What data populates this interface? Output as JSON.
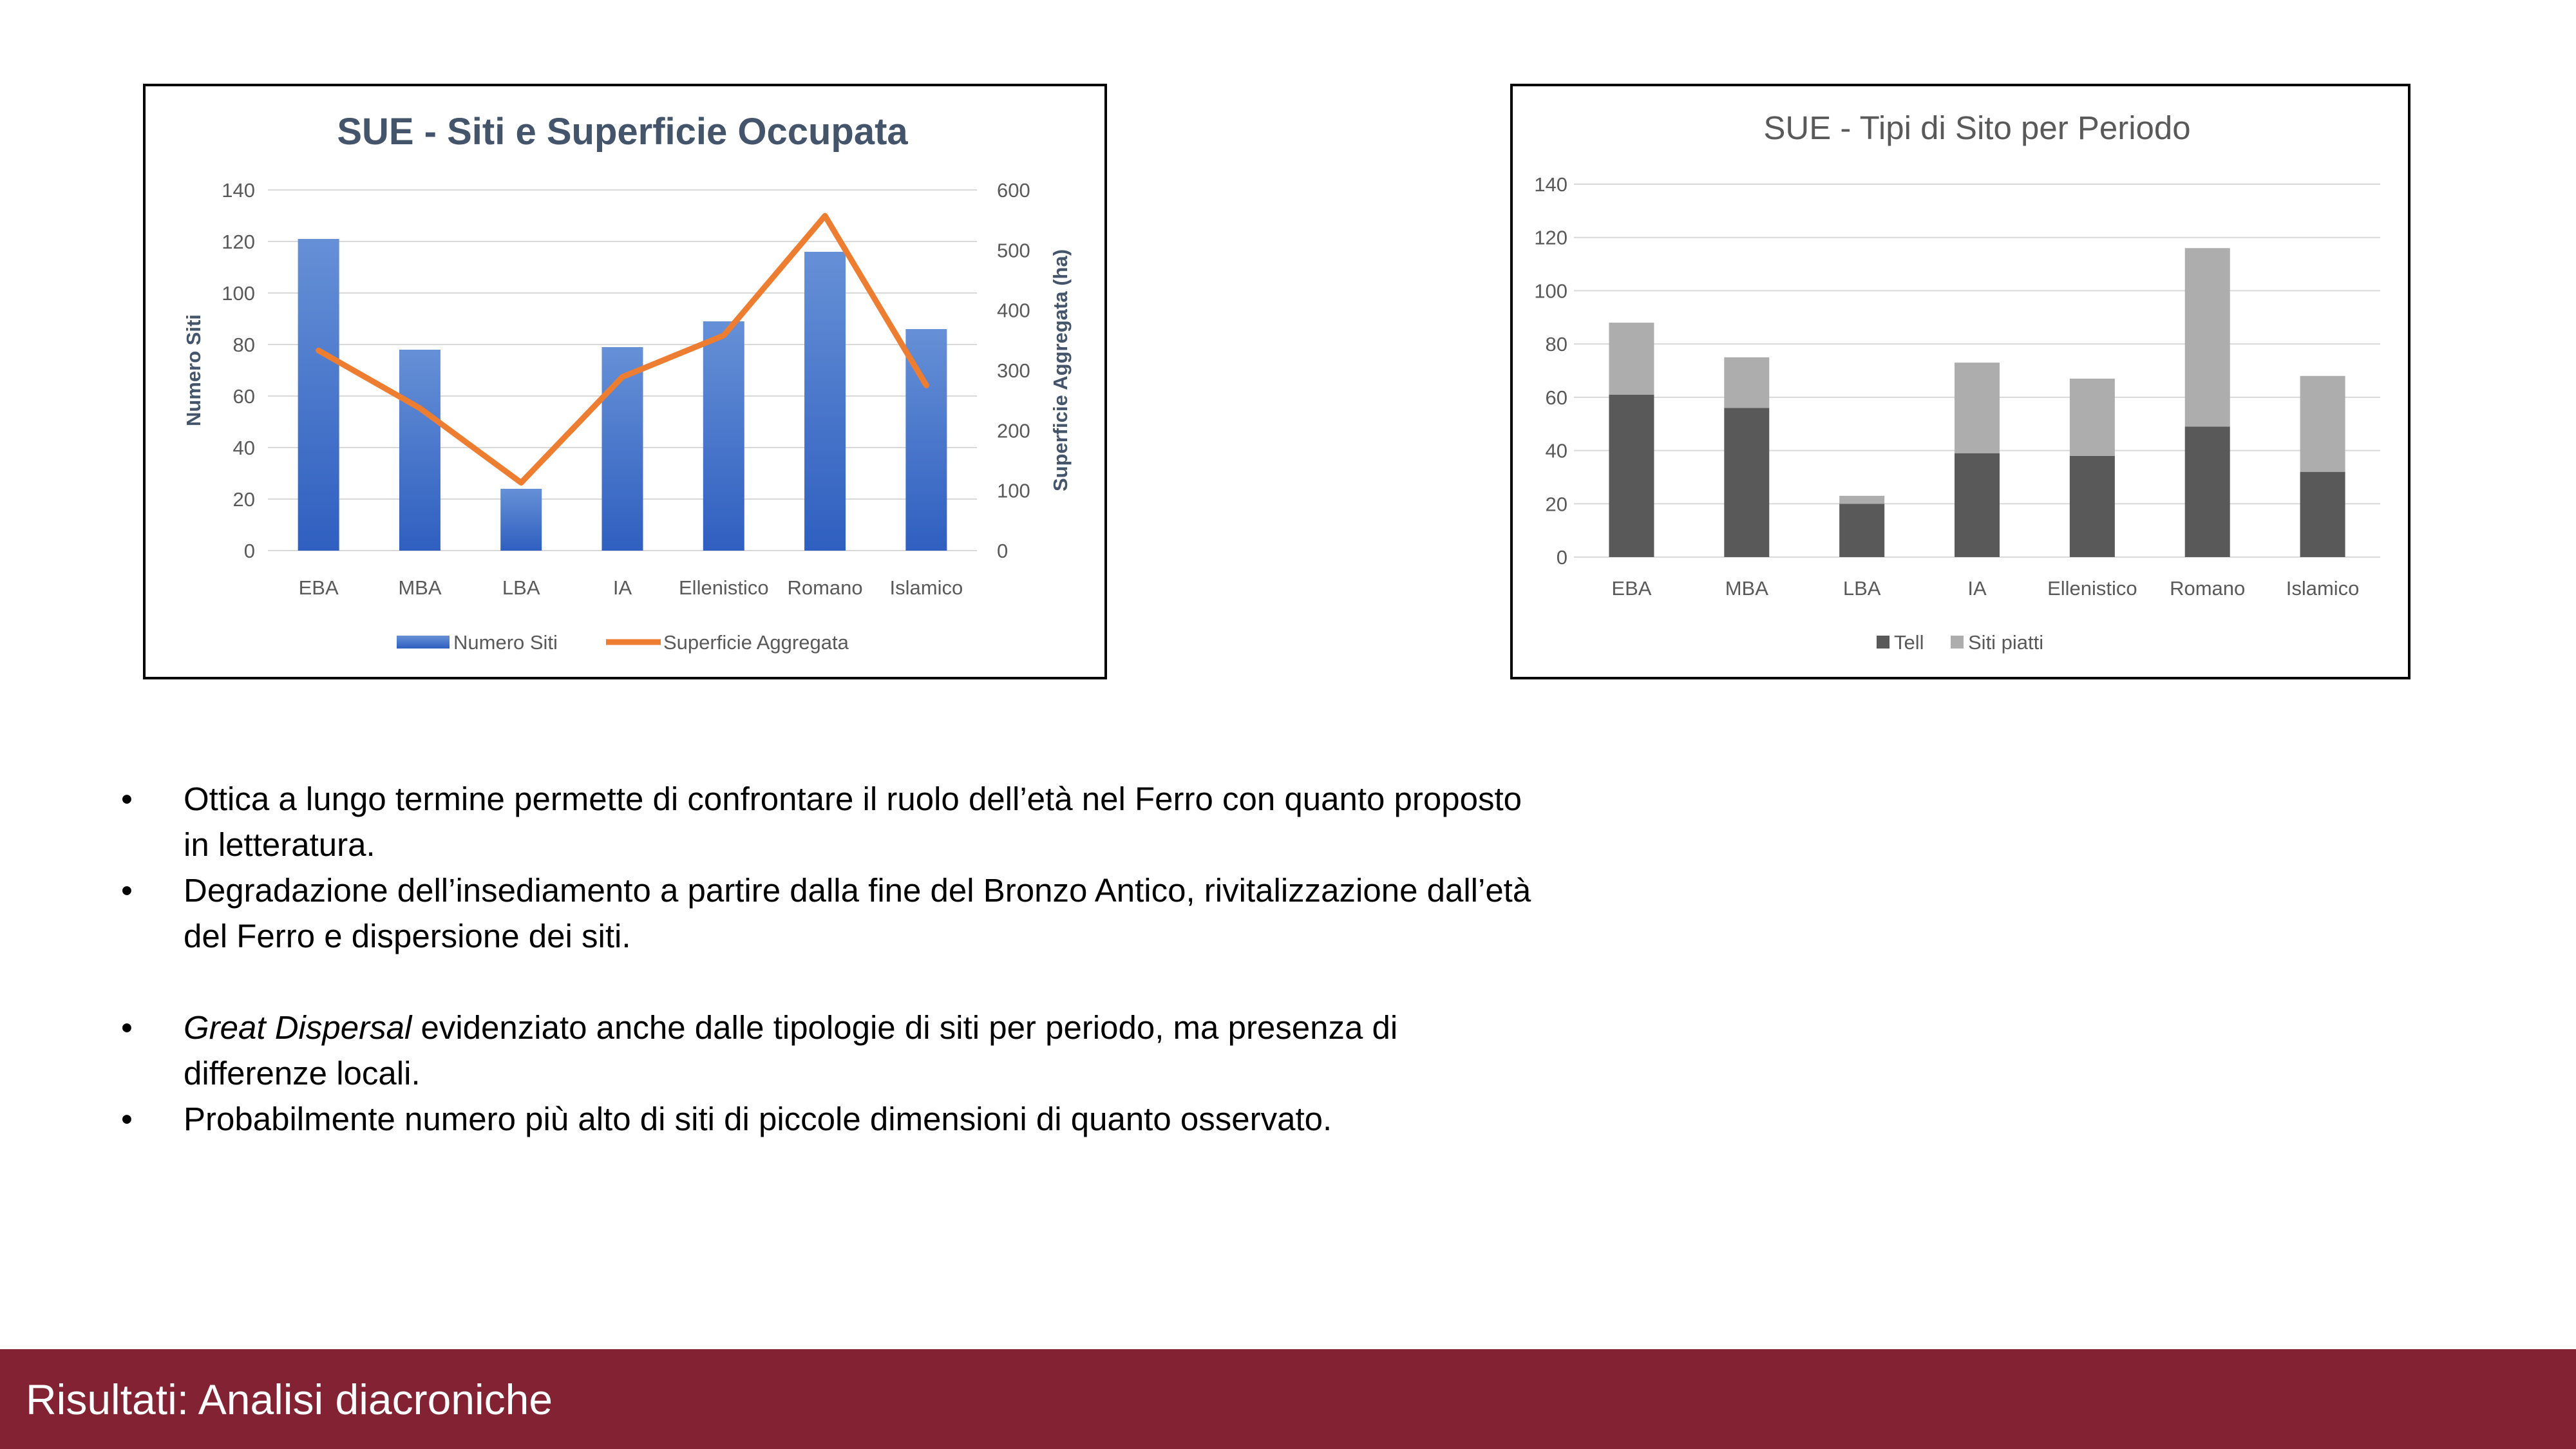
{
  "chart_data": [
    {
      "type": "bar",
      "title": "SUE - Siti e Superficie Occupata",
      "categories": [
        "EBA",
        "MBA",
        "LBA",
        "IA",
        "Ellenistico",
        "Romano",
        "Islamico"
      ],
      "series": [
        {
          "name": "Numero Siti",
          "type": "bar",
          "axis": "left",
          "values": [
            121,
            78,
            24,
            79,
            89,
            116,
            86
          ],
          "color": "#4472C4"
        },
        {
          "name": "Superficie Aggregata",
          "type": "line",
          "axis": "right",
          "values": [
            333,
            237,
            113,
            289,
            358,
            557,
            275
          ],
          "color": "#ED7D31"
        }
      ],
      "ylabel": "Numero Siti",
      "y2label": "Superficie Aggregata (ha)",
      "ylim": [
        0,
        140
      ],
      "y2lim": [
        0,
        600
      ],
      "yticks": [
        "0",
        "20",
        "40",
        "60",
        "80",
        "100",
        "120",
        "140"
      ],
      "y2ticks": [
        "0",
        "100",
        "200",
        "300",
        "400",
        "500",
        "600"
      ],
      "grid": true,
      "legend": "bottom"
    },
    {
      "type": "bar",
      "stacked": true,
      "title": "SUE - Tipi di Sito per Periodo",
      "categories": [
        "EBA",
        "MBA",
        "LBA",
        "IA",
        "Ellenistico",
        "Romano",
        "Islamico"
      ],
      "series": [
        {
          "name": "Tell",
          "values": [
            61,
            56,
            20,
            39,
            38,
            49,
            32
          ],
          "color": "#595959"
        },
        {
          "name": "Siti piatti",
          "values": [
            27,
            19,
            3,
            34,
            29,
            67,
            36
          ],
          "color": "#ADADAD"
        }
      ],
      "ylim": [
        0,
        140
      ],
      "yticks": [
        "0",
        "20",
        "40",
        "60",
        "80",
        "100",
        "120",
        "140"
      ],
      "grid": true,
      "legend": "bottom"
    }
  ],
  "bullets": [
    {
      "text": "Ottica a lungo termine permette di confrontare il ruolo dell’età nel Ferro con quanto proposto in letteratura."
    },
    {
      "text": "Degradazione dell’insediamento a partire dalla fine del Bronzo Antico, rivitalizzazione dall’età del Ferro e dispersione dei siti."
    },
    {
      "em": "Great Dispersal",
      "text": " evidenziato anche dalle tipologie di siti per periodo, ma presenza di differenze locali."
    },
    {
      "text": "Probabilmente numero più alto di siti di piccole dimensioni di quanto osservato."
    }
  ],
  "footer": {
    "title": "Risultati: Analisi diacroniche",
    "color": "#822232"
  }
}
